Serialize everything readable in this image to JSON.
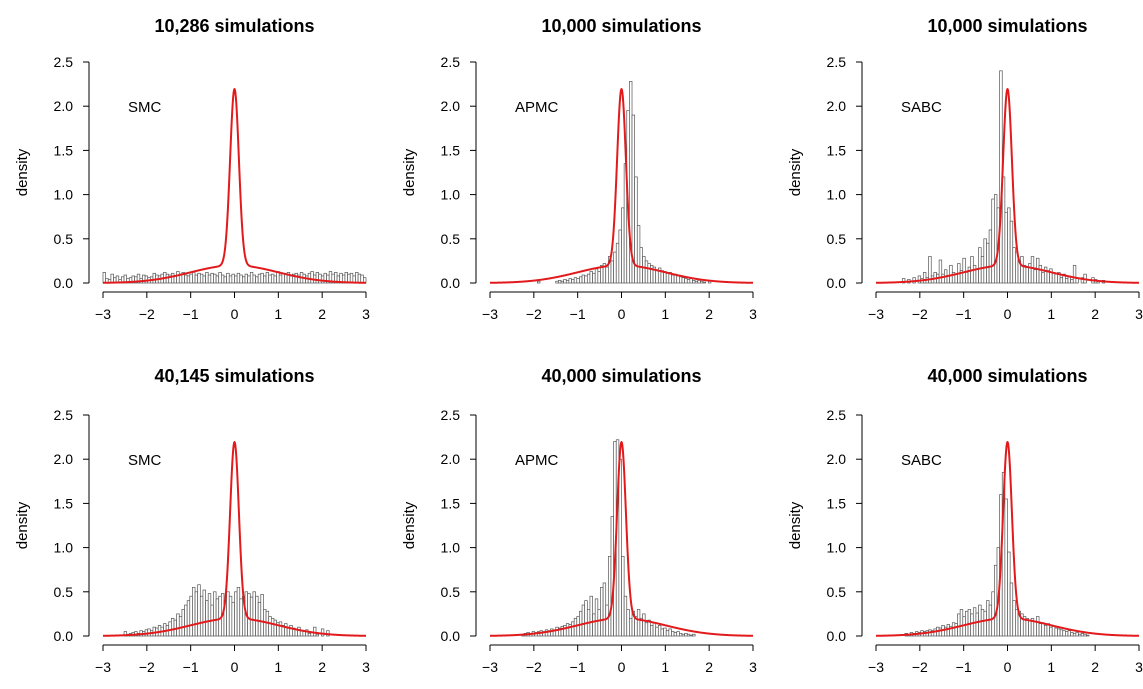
{
  "colors": {
    "density_curve": "#e31a1c",
    "bar_border": "#555555",
    "bar_fill": "#ffffff"
  },
  "chart_data": [
    {
      "type": "histogram-with-density",
      "title": "10,286 simulations",
      "method_label": "SMC",
      "ylabel": "density",
      "xlim": [
        -3,
        3
      ],
      "ylim": [
        0,
        2.5
      ],
      "xticks": [
        "−3",
        "−2",
        "−1",
        "0",
        "1",
        "2",
        "3"
      ],
      "yticks": [
        "0.0",
        "0.5",
        "1.0",
        "1.5",
        "2.0",
        "2.5"
      ],
      "bin_width": 0.06,
      "bin_start": -3,
      "hist_density": [
        0.12,
        0.05,
        0.04,
        0.1,
        0.06,
        0.08,
        0.04,
        0.07,
        0.09,
        0.05,
        0.06,
        0.08,
        0.07,
        0.1,
        0.05,
        0.09,
        0.08,
        0.06,
        0.07,
        0.11,
        0.09,
        0.08,
        0.1,
        0.12,
        0.1,
        0.09,
        0.11,
        0.08,
        0.13,
        0.1,
        0.12,
        0.09,
        0.08,
        0.1,
        0.12,
        0.09,
        0.11,
        0.1,
        0.08,
        0.12,
        0.09,
        0.11,
        0.1,
        0.08,
        0.12,
        0.09,
        0.07,
        0.11,
        0.08,
        0.1,
        0.08,
        0.11,
        0.09,
        0.07,
        0.1,
        0.08,
        0.12,
        0.09,
        0.07,
        0.1,
        0.11,
        0.08,
        0.12,
        0.09,
        0.1,
        0.08,
        0.13,
        0.09,
        0.11,
        0.1,
        0.12,
        0.08,
        0.1,
        0.11,
        0.09,
        0.12,
        0.1,
        0.08,
        0.11,
        0.13,
        0.09,
        0.12,
        0.1,
        0.08,
        0.11,
        0.09,
        0.13,
        0.1,
        0.12,
        0.08,
        0.11,
        0.09,
        0.12,
        0.1,
        0.11,
        0.08,
        0.12,
        0.1,
        0.09,
        0.06
      ]
    },
    {
      "type": "histogram-with-density",
      "title": "10,000 simulations",
      "method_label": "APMC",
      "ylabel": "density",
      "xlim": [
        -3,
        3
      ],
      "ylim": [
        0,
        2.5
      ],
      "xticks": [
        "−3",
        "−2",
        "−1",
        "0",
        "1",
        "2",
        "3"
      ],
      "yticks": [
        "0.0",
        "0.5",
        "1.0",
        "1.5",
        "2.0",
        "2.5"
      ],
      "bin_width": 0.06,
      "bin_start": -3,
      "hist_density": [
        0,
        0,
        0,
        0,
        0,
        0,
        0,
        0,
        0,
        0,
        0,
        0,
        0,
        0,
        0,
        0,
        0,
        0,
        0.02,
        0,
        0,
        0,
        0,
        0,
        0,
        0.02,
        0.03,
        0.02,
        0.04,
        0.03,
        0.05,
        0.04,
        0.06,
        0.05,
        0.07,
        0.09,
        0.08,
        0.1,
        0.13,
        0.11,
        0.16,
        0.13,
        0.2,
        0.22,
        0.18,
        0.3,
        0.25,
        0.35,
        0.45,
        0.6,
        0.85,
        1.35,
        1.95,
        2.28,
        1.9,
        1.2,
        0.65,
        0.4,
        0.3,
        0.25,
        0.22,
        0.2,
        0.18,
        0.15,
        0.17,
        0.14,
        0.13,
        0.11,
        0.12,
        0.09,
        0.1,
        0.08,
        0.07,
        0.06,
        0.05,
        0.04,
        0.05,
        0.03,
        0.02,
        0.03,
        0.02,
        0.01,
        0,
        0.02,
        0,
        0,
        0,
        0,
        0,
        0,
        0,
        0,
        0,
        0,
        0,
        0,
        0,
        0,
        0,
        0
      ]
    },
    {
      "type": "histogram-with-density",
      "title": "10,000 simulations",
      "method_label": "SABC",
      "ylabel": "density",
      "xlim": [
        -3,
        3
      ],
      "ylim": [
        0,
        2.5
      ],
      "xticks": [
        "−3",
        "−2",
        "−1",
        "0",
        "1",
        "2",
        "3"
      ],
      "yticks": [
        "0.0",
        "0.5",
        "1.0",
        "1.5",
        "2.0",
        "2.5"
      ],
      "bin_width": 0.06,
      "bin_start": -3,
      "hist_density": [
        0,
        0,
        0,
        0,
        0,
        0,
        0,
        0,
        0,
        0,
        0.05,
        0,
        0.04,
        0,
        0.06,
        0,
        0.08,
        0.05,
        0.12,
        0.06,
        0.3,
        0.08,
        0.12,
        0.1,
        0.26,
        0.1,
        0.15,
        0.08,
        0.2,
        0.12,
        0.1,
        0.22,
        0.14,
        0.28,
        0.12,
        0.18,
        0.3,
        0.2,
        0.16,
        0.4,
        0.3,
        0.5,
        0.45,
        0.6,
        0.95,
        1.0,
        0.85,
        2.4,
        1.2,
        0.8,
        0.85,
        0.7,
        0.4,
        0.35,
        0.25,
        0.3,
        0.2,
        0.18,
        0.22,
        0.3,
        0.15,
        0.28,
        0.2,
        0.12,
        0.18,
        0.14,
        0.16,
        0.12,
        0.1,
        0.12,
        0.06,
        0.1,
        0.05,
        0.08,
        0.04,
        0.2,
        0.05,
        0,
        0.06,
        0.1,
        0,
        0,
        0.06,
        0.04,
        0.02,
        0,
        0.03,
        0,
        0,
        0,
        0,
        0,
        0,
        0,
        0,
        0,
        0,
        0,
        0,
        0
      ]
    },
    {
      "type": "histogram-with-density",
      "title": "40,145 simulations",
      "method_label": "SMC",
      "ylabel": "density",
      "xlim": [
        -3,
        3
      ],
      "ylim": [
        0,
        2.5
      ],
      "xticks": [
        "−3",
        "−2",
        "−1",
        "0",
        "1",
        "2",
        "3"
      ],
      "yticks": [
        "0.0",
        "0.5",
        "1.0",
        "1.5",
        "2.0",
        "2.5"
      ],
      "bin_width": 0.06,
      "bin_start": -3,
      "hist_density": [
        0,
        0,
        0,
        0,
        0,
        0,
        0,
        0,
        0.05,
        0.02,
        0.03,
        0.04,
        0.05,
        0.03,
        0.06,
        0.05,
        0.07,
        0.08,
        0.06,
        0.1,
        0.09,
        0.12,
        0.1,
        0.14,
        0.12,
        0.16,
        0.2,
        0.18,
        0.25,
        0.22,
        0.3,
        0.35,
        0.4,
        0.45,
        0.55,
        0.5,
        0.58,
        0.45,
        0.52,
        0.4,
        0.48,
        0.35,
        0.5,
        0.42,
        0.45,
        0.48,
        0.4,
        0.5,
        0.45,
        0.38,
        0.5,
        0.55,
        0.42,
        0.45,
        0.5,
        0.48,
        0.44,
        0.5,
        0.45,
        0.38,
        0.47,
        0.3,
        0.28,
        0.22,
        0.2,
        0.18,
        0.15,
        0.16,
        0.12,
        0.14,
        0.1,
        0.12,
        0.09,
        0.08,
        0.1,
        0.06,
        0.05,
        0.07,
        0.03,
        0.04,
        0.1,
        0.02,
        0,
        0.08,
        0,
        0.06,
        0,
        0,
        0,
        0,
        0,
        0,
        0,
        0,
        0,
        0,
        0,
        0,
        0,
        0
      ]
    },
    {
      "type": "histogram-with-density",
      "title": "40,000 simulations",
      "method_label": "APMC",
      "ylabel": "density",
      "xlim": [
        -3,
        3
      ],
      "ylim": [
        0,
        2.5
      ],
      "xticks": [
        "−3",
        "−2",
        "−1",
        "0",
        "1",
        "2",
        "3"
      ],
      "yticks": [
        "0.0",
        "0.5",
        "1.0",
        "1.5",
        "2.0",
        "2.5"
      ],
      "bin_width": 0.06,
      "bin_start": -3,
      "hist_density": [
        0,
        0,
        0,
        0,
        0,
        0,
        0,
        0,
        0,
        0,
        0,
        0,
        0.02,
        0.03,
        0.04,
        0.03,
        0.05,
        0.04,
        0.05,
        0.06,
        0.05,
        0.07,
        0.06,
        0.08,
        0.07,
        0.1,
        0.09,
        0.11,
        0.12,
        0.14,
        0.13,
        0.16,
        0.2,
        0.22,
        0.28,
        0.35,
        0.4,
        0.3,
        0.45,
        0.25,
        0.42,
        0.3,
        0.55,
        0.6,
        0.35,
        0.9,
        1.35,
        2.2,
        2.22,
        2.0,
        0.9,
        0.45,
        0.3,
        0.2,
        0.28,
        0.22,
        0.3,
        0.2,
        0.25,
        0.15,
        0.18,
        0.12,
        0.15,
        0.1,
        0.12,
        0.08,
        0.09,
        0.06,
        0.08,
        0.05,
        0.04,
        0.05,
        0.03,
        0.02,
        0.03,
        0.02,
        0.01,
        0.02,
        0,
        0,
        0,
        0,
        0,
        0,
        0,
        0,
        0,
        0,
        0,
        0,
        0,
        0,
        0,
        0,
        0,
        0,
        0,
        0,
        0,
        0
      ]
    },
    {
      "type": "histogram-with-density",
      "title": "40,000 simulations",
      "method_label": "SABC",
      "ylabel": "density",
      "xlim": [
        -3,
        3
      ],
      "ylim": [
        0,
        2.5
      ],
      "xticks": [
        "−3",
        "−2",
        "−1",
        "0",
        "1",
        "2",
        "3"
      ],
      "yticks": [
        "0.0",
        "0.5",
        "1.0",
        "1.5",
        "2.0",
        "2.5"
      ],
      "bin_width": 0.06,
      "bin_start": -3,
      "hist_density": [
        0,
        0,
        0,
        0,
        0,
        0,
        0,
        0,
        0,
        0,
        0,
        0.03,
        0.02,
        0.04,
        0.03,
        0.05,
        0.04,
        0.06,
        0.05,
        0.06,
        0.07,
        0.06,
        0.08,
        0.1,
        0.09,
        0.12,
        0.1,
        0.13,
        0.11,
        0.15,
        0.14,
        0.25,
        0.3,
        0.22,
        0.28,
        0.3,
        0.25,
        0.32,
        0.26,
        0.35,
        0.3,
        0.28,
        0.4,
        0.35,
        0.5,
        0.8,
        1.0,
        1.6,
        1.85,
        1.55,
        0.95,
        0.6,
        0.4,
        0.3,
        0.28,
        0.25,
        0.22,
        0.2,
        0.18,
        0.2,
        0.16,
        0.22,
        0.14,
        0.15,
        0.12,
        0.14,
        0.1,
        0.11,
        0.09,
        0.08,
        0.07,
        0.06,
        0.05,
        0.06,
        0.04,
        0.03,
        0.04,
        0.02,
        0.03,
        0.02,
        0.01,
        0,
        0,
        0,
        0,
        0,
        0,
        0,
        0,
        0,
        0,
        0,
        0,
        0,
        0,
        0,
        0,
        0,
        0,
        0
      ]
    }
  ]
}
